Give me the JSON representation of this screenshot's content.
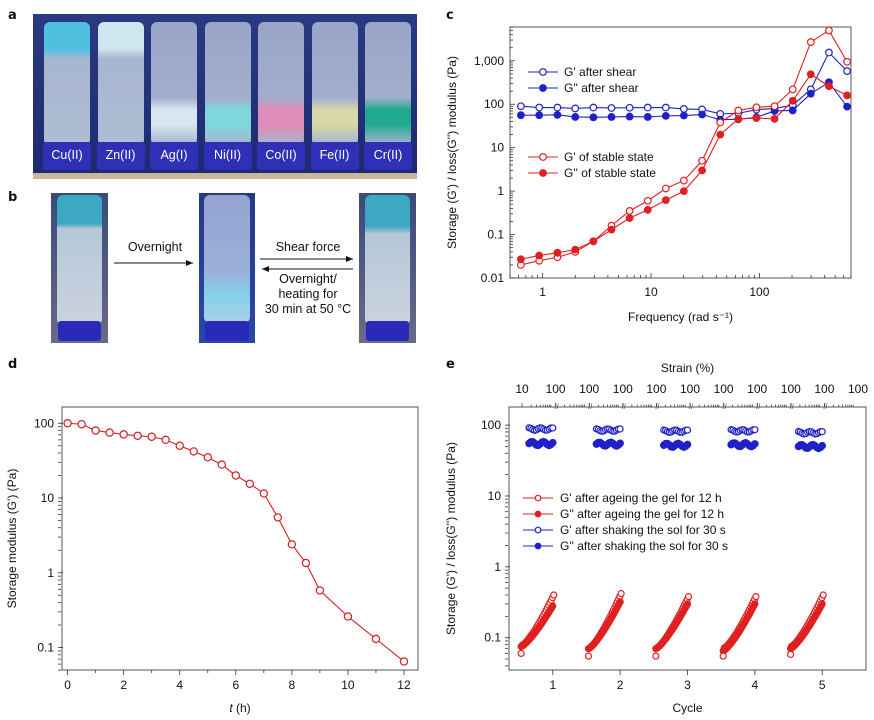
{
  "panels": {
    "a": {
      "letter": "a",
      "vials": [
        {
          "label": "Cu(II)",
          "state": "gel",
          "tint": "#4fc0e0"
        },
        {
          "label": "Zn(II)",
          "state": "gel",
          "tint": "#cfe6f0"
        },
        {
          "label": "Ag(I)",
          "state": "sol",
          "tint": "#d8e6f2"
        },
        {
          "label": "Ni(II)",
          "state": "sol",
          "tint": "#7fd6dc"
        },
        {
          "label": "Co(II)",
          "state": "sol",
          "tint": "#e08cb8"
        },
        {
          "label": "Fe(II)",
          "state": "sol",
          "tint": "#d8d8a8"
        },
        {
          "label": "Cr(II)",
          "state": "sol",
          "tint": "#20a890"
        }
      ]
    },
    "b": {
      "letter": "b",
      "step1_label": "Overnight",
      "forward_label": "Shear force",
      "reverse_label_1": "Overnight/",
      "reverse_label_2": "heating for",
      "reverse_label_3": "30 min at 50 °C"
    },
    "c": {
      "letter": "c"
    },
    "d": {
      "letter": "d"
    },
    "e": {
      "letter": "e"
    }
  },
  "chart_data": [
    {
      "id": "c",
      "type": "line",
      "xscale": "log",
      "yscale": "log",
      "xlabel": "Frequency (rad s⁻¹)",
      "ylabel": "Storage (G') / loss(G'') modulus (Pa)",
      "xlim": [
        0.5,
        700
      ],
      "ylim": [
        0.01,
        6000
      ],
      "xticks": [
        1,
        10,
        100
      ],
      "xticklabels": [
        "1",
        "10",
        "100"
      ],
      "yticks": [
        0.01,
        0.1,
        1,
        10,
        100,
        1000
      ],
      "yticklabels": [
        "0.01",
        "0.1",
        "1",
        "10",
        "100",
        "1,000"
      ],
      "x": [
        0.63,
        0.93,
        1.37,
        2.0,
        2.94,
        4.32,
        6.35,
        9.33,
        13.7,
        20.1,
        29.6,
        43.5,
        63.9,
        93.9,
        138,
        203,
        298,
        438,
        644
      ],
      "series": [
        {
          "name": "G' after shear",
          "color": "#2020c8",
          "filled": false,
          "values": [
            90,
            84,
            84,
            80,
            84,
            82,
            83,
            84,
            84,
            78,
            76,
            60,
            62,
            75,
            80,
            95,
            220,
            1550,
            580
          ]
        },
        {
          "name": "G'' after shear",
          "color": "#2020c8",
          "filled": true,
          "values": [
            56,
            56,
            57,
            51,
            50,
            51,
            52,
            51,
            54,
            55,
            58,
            44,
            45,
            50,
            70,
            72,
            175,
            320,
            88
          ]
        },
        {
          "name": "G' of stable state",
          "color": "#e02020",
          "filled": false,
          "values": [
            0.02,
            0.025,
            0.03,
            0.04,
            0.07,
            0.16,
            0.35,
            0.6,
            1.15,
            1.75,
            5.0,
            38,
            72,
            85,
            90,
            220,
            2700,
            5000,
            950
          ]
        },
        {
          "name": "G'' of stable state",
          "color": "#e02020",
          "filled": true,
          "values": [
            0.027,
            0.033,
            0.038,
            0.045,
            0.07,
            0.13,
            0.24,
            0.37,
            0.62,
            1.0,
            3.0,
            20,
            46,
            48,
            46,
            120,
            490,
            260,
            160
          ]
        }
      ],
      "legend": "upper-left"
    },
    {
      "id": "d",
      "type": "line",
      "xscale": "linear",
      "yscale": "log",
      "xlabel": "t (h)",
      "ylabel": "Storage modulus (G') (Pa)",
      "xlim": [
        -0.2,
        12.5
      ],
      "ylim": [
        0.05,
        165
      ],
      "xticks": [
        0,
        2,
        4,
        6,
        8,
        10,
        12
      ],
      "yticks": [
        0.1,
        1,
        10,
        100
      ],
      "yticklabels": [
        "0.1",
        "1",
        "10",
        "100"
      ],
      "series": [
        {
          "name": "G'",
          "color": "#d02020",
          "filled": false,
          "x": [
            0,
            0.5,
            1,
            1.5,
            2,
            2.5,
            3,
            3.5,
            4,
            4.5,
            5,
            5.5,
            6,
            6.5,
            7,
            7.5,
            8,
            8.5,
            9,
            10,
            11,
            12
          ],
          "values": [
            100,
            97,
            80,
            75,
            71,
            68,
            66,
            60,
            50,
            42,
            35,
            28,
            20,
            15.5,
            11.5,
            5.5,
            2.4,
            1.35,
            0.58,
            0.26,
            0.13,
            0.065
          ]
        }
      ]
    },
    {
      "id": "e",
      "type": "scatter",
      "xscale": "linear",
      "yscale": "log",
      "xlabel": "Cycle",
      "ylabel": "Storage (G') / loss(G'') modulus (Pa)",
      "top_xlabel": "Strain (%)",
      "top_xticklabels": [
        "10",
        "100",
        "100",
        "100",
        "100",
        "100",
        "100",
        "100",
        "100",
        "100",
        "100"
      ],
      "xlim": [
        0.35,
        5.65
      ],
      "ylim": [
        0.035,
        180
      ],
      "xticks": [
        1,
        2,
        3,
        4,
        5
      ],
      "yticks": [
        0.1,
        1,
        10,
        100
      ],
      "yticklabels": [
        "0.1",
        "1",
        "10",
        "100"
      ],
      "cycles": [
        {
          "cycle": 1,
          "gp_gel": [
            0.06,
            0.4
          ],
          "gpp_gel": [
            0.075,
            0.28
          ],
          "gp_sol": 88,
          "gpp_sol": 55
        },
        {
          "cycle": 2,
          "gp_gel": [
            0.055,
            0.42
          ],
          "gpp_gel": [
            0.07,
            0.32
          ],
          "gp_sol": 85,
          "gpp_sol": 54
        },
        {
          "cycle": 3,
          "gp_gel": [
            0.055,
            0.38
          ],
          "gpp_gel": [
            0.07,
            0.3
          ],
          "gp_sol": 82,
          "gpp_sol": 52
        },
        {
          "cycle": 4,
          "gp_gel": [
            0.055,
            0.38
          ],
          "gpp_gel": [
            0.065,
            0.3
          ],
          "gp_sol": 83,
          "gpp_sol": 53
        },
        {
          "cycle": 5,
          "gp_gel": [
            0.058,
            0.4
          ],
          "gpp_gel": [
            0.07,
            0.3
          ],
          "gp_sol": 78,
          "gpp_sol": 50
        }
      ],
      "series": [
        {
          "name": "G' after ageing the gel for 12 h",
          "color": "#e02020",
          "filled": false
        },
        {
          "name": "G'' after ageing the gel for 12 h",
          "color": "#e02020",
          "filled": true
        },
        {
          "name": "G' after shaking the sol for 30 s",
          "color": "#2020c8",
          "filled": false
        },
        {
          "name": "G'' after shaking the sol for 30 s",
          "color": "#2020c8",
          "filled": true
        }
      ],
      "legend": "middle-left"
    }
  ]
}
